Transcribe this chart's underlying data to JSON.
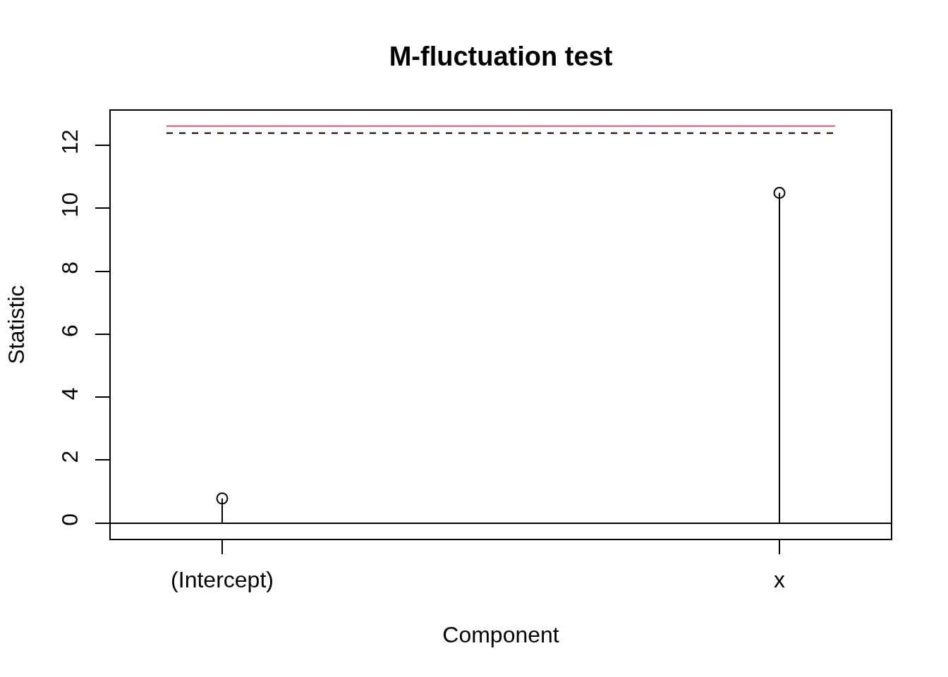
{
  "chart_data": {
    "type": "lollipop",
    "title": "M-fluctuation test",
    "xlabel": "Component",
    "ylabel": "Statistic",
    "categories": [
      "(Intercept)",
      "x"
    ],
    "values": [
      0.78,
      10.49
    ],
    "color": "#000000",
    "marker": "circle",
    "ylim": [
      -0.5,
      13.1
    ],
    "yticks": [
      0,
      2,
      4,
      6,
      8,
      10,
      12
    ],
    "ref_lines": [
      {
        "axis": "y",
        "value": 12.61,
        "color": "#df536b",
        "line_style": "solid"
      },
      {
        "axis": "y",
        "value": 12.39,
        "color": "#000000",
        "line_style": "dashed"
      }
    ]
  }
}
